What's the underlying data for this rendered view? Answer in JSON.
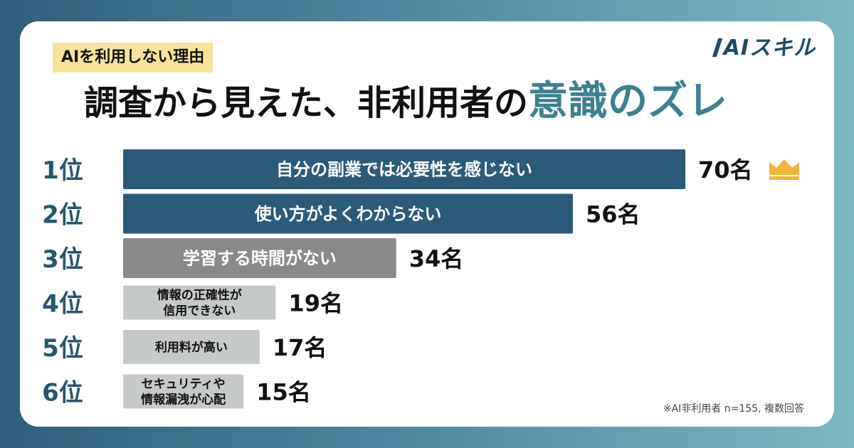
{
  "brand": {
    "logo_text": "AIスキル"
  },
  "header": {
    "subtitle": "AIを利用しない理由",
    "title_main": "調査から見えた、非利用者の",
    "title_highlight": "意識のズレ"
  },
  "footnote": "※AI非利用者 n=155, 複数回答",
  "colors": {
    "rank": "#27566f",
    "accent": "#3c8190",
    "bar_dark": "#2c5b7a",
    "bar_gray": "#8a8a8a",
    "bar_light": "#c6cac6",
    "crown": "#f2b43a"
  },
  "chart_data": {
    "type": "bar",
    "orientation": "horizontal",
    "unit": "名",
    "categories": [
      "自分の副業では必要性を感じない",
      "使い方がよくわからない",
      "学習する時間がない",
      "情報の正確性が\n信用できない",
      "利用料が高い",
      "セキュリティや\n情報漏洩が心配"
    ],
    "ranks": [
      "1位",
      "2位",
      "3位",
      "4位",
      "5位",
      "6位"
    ],
    "values": [
      70,
      56,
      34,
      19,
      17,
      15
    ],
    "value_labels": [
      "70名",
      "56名",
      "34名",
      "19名",
      "17名",
      "15名"
    ],
    "top_icon": "crown-icon"
  }
}
